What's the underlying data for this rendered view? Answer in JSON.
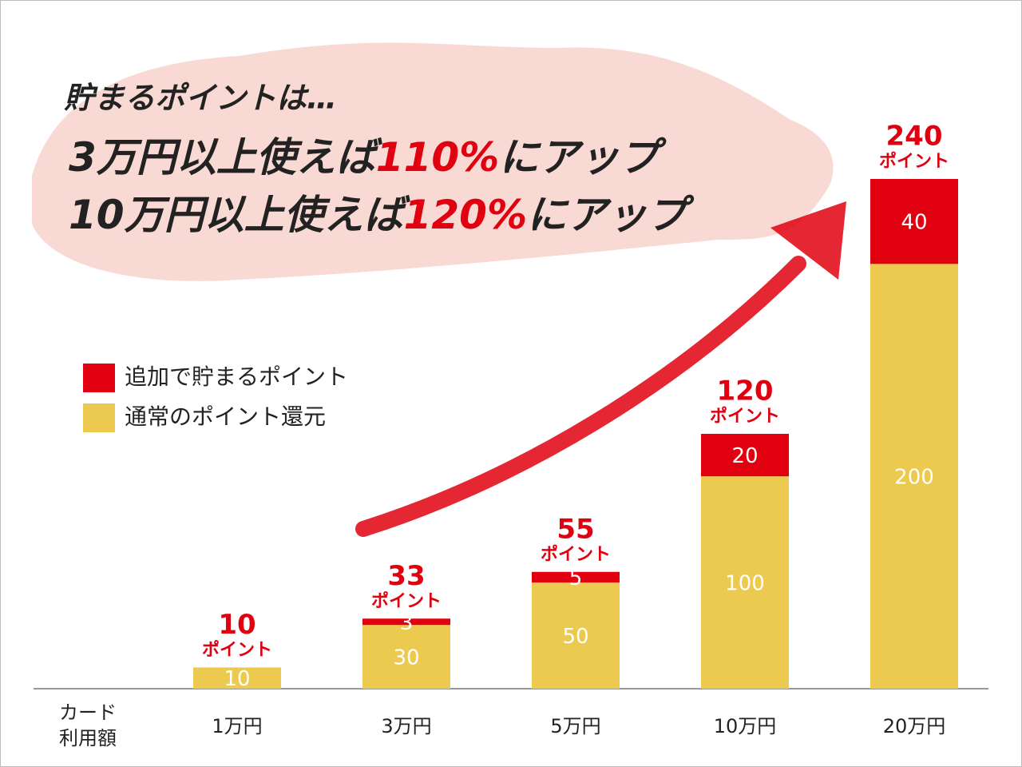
{
  "headline": {
    "intro": "貯まるポイントは…",
    "lines": [
      [
        "3万円以上使えば",
        "110%",
        "にアップ"
      ],
      [
        "10万円以上使えば",
        "120%",
        "にアップ"
      ]
    ]
  },
  "chart_data": {
    "type": "stacked_bar",
    "categories": [
      "1万円",
      "3万円",
      "5万円",
      "10万円",
      "20万円"
    ],
    "x_label": [
      "カード",
      "利用額"
    ],
    "series": [
      {
        "name": "通常のポイント還元",
        "color": "#ecc94f",
        "values": [
          10,
          30,
          50,
          100,
          200
        ]
      },
      {
        "name": "追加で貯まるポイント",
        "color": "#e0000f",
        "values": [
          null,
          3,
          5,
          20,
          40
        ]
      }
    ],
    "totals": [
      10,
      33,
      55,
      120,
      240
    ],
    "total_unit": "ポイント",
    "total_color": "#e0000f",
    "ylim": [
      0,
      240
    ],
    "legend": "upper-left"
  }
}
